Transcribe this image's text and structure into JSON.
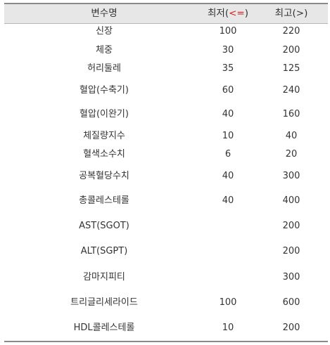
{
  "table": {
    "headers": {
      "variable": "변수명",
      "min_prefix": "최저(",
      "min_op": "<=",
      "min_suffix": ")",
      "max": "최고(>)"
    },
    "rows": [
      {
        "name": "신장",
        "min": "100",
        "max": "220"
      },
      {
        "name": "체중",
        "min": "30",
        "max": "200"
      },
      {
        "name": "허리둘레",
        "min": "35",
        "max": "125"
      },
      {
        "name": "혈압(수축기)",
        "min": "60",
        "max": "240"
      },
      {
        "name": "혈압(이완기)",
        "min": "40",
        "max": "160"
      },
      {
        "name": "체질량지수",
        "min": "10",
        "max": "40"
      },
      {
        "name": "혈색소수치",
        "min": "6",
        "max": "20"
      },
      {
        "name": "공복혈당수치",
        "min": "40",
        "max": "300"
      },
      {
        "name": "총콜레스테롤",
        "min": "40",
        "max": "400"
      },
      {
        "name": "AST(SGOT)",
        "min": "",
        "max": "200"
      },
      {
        "name": "ALT(SGPT)",
        "min": "",
        "max": "200"
      },
      {
        "name": "감마지피티",
        "min": "",
        "max": "300"
      },
      {
        "name": "트리글리세라이드",
        "min": "100",
        "max": "600"
      },
      {
        "name": "HDL콜레스테롤",
        "min": "10",
        "max": "200"
      }
    ]
  },
  "colors": {
    "header_bg": "#e7e7e7",
    "rule": "#8a8a8a",
    "text": "#333333",
    "accent_red": "#d81e1e"
  }
}
